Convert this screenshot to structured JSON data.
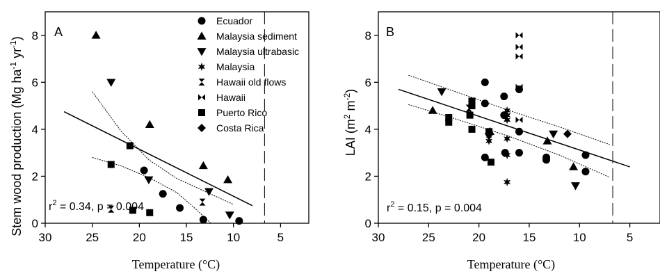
{
  "chart_data": [
    {
      "type": "scatter",
      "panel_label": "A",
      "xlabel": "Temperature (°C)",
      "ylabel_main": "Stem wood production (Mg ha",
      "ylabel_sup1": "-1",
      "ylabel_mid": " yr",
      "ylabel_sup2": "-1",
      "ylabel_end": ")",
      "xlim": [
        30,
        2
      ],
      "ylim": [
        0,
        9
      ],
      "xticks": [
        30,
        25,
        20,
        15,
        10,
        5
      ],
      "yticks": [
        0,
        2,
        4,
        6,
        8
      ],
      "xtick_labels": [
        "30",
        "25",
        "20",
        "15",
        "10",
        "5"
      ],
      "ytick_labels": [
        "0",
        "2",
        "4",
        "6",
        "8"
      ],
      "annotation_pre": "r",
      "annotation_sup": "2",
      "annotation_post": " = 0.34, p = 0.004",
      "dashed_line_x": 6.7,
      "legend_position": "top-right",
      "legend": [
        {
          "label": "Ecuador",
          "marker": "circle"
        },
        {
          "label": "Malaysia sediment",
          "marker": "triangle-up"
        },
        {
          "label": "Malaysia ultrabasic",
          "marker": "triangle-down"
        },
        {
          "label": "Malaysia",
          "marker": "star"
        },
        {
          "label": "Hawaii old flows",
          "marker": "hourglass"
        },
        {
          "label": "Hawaii",
          "marker": "bowtie"
        },
        {
          "label": "Puerto Rico",
          "marker": "square"
        },
        {
          "label": "Costa Rica",
          "marker": "diamond"
        }
      ],
      "series": [
        {
          "name": "Ecuador",
          "marker": "circle",
          "points": [
            [
              19.5,
              2.25
            ],
            [
              17.5,
              1.25
            ],
            [
              15.7,
              0.65
            ],
            [
              13.2,
              0.15
            ],
            [
              9.4,
              0.1
            ]
          ]
        },
        {
          "name": "Malaysia sediment",
          "marker": "triangle-up",
          "points": [
            [
              24.6,
              8.0
            ],
            [
              18.9,
              4.2
            ],
            [
              13.2,
              2.45
            ],
            [
              10.6,
              1.85
            ]
          ]
        },
        {
          "name": "Malaysia ultrabasic",
          "marker": "triangle-down",
          "points": [
            [
              23.0,
              6.0
            ],
            [
              19.0,
              1.85
            ],
            [
              12.6,
              1.35
            ],
            [
              10.4,
              0.35
            ]
          ]
        },
        {
          "name": "Hawaii old flows",
          "marker": "hourglass",
          "points": [
            [
              23.0,
              0.6
            ],
            [
              13.3,
              0.9
            ]
          ]
        },
        {
          "name": "Puerto Rico",
          "marker": "square",
          "points": [
            [
              23.0,
              2.5
            ],
            [
              21.0,
              3.3
            ],
            [
              20.7,
              0.55
            ],
            [
              18.9,
              0.45
            ]
          ]
        }
      ],
      "regression": {
        "x1": 28,
        "y1": 4.75,
        "x2": 8,
        "y2": 0.75
      },
      "ci_upper": [
        [
          25.0,
          5.6
        ],
        [
          22.0,
          3.95
        ],
        [
          19.0,
          2.7
        ],
        [
          16.0,
          1.9
        ],
        [
          13.0,
          1.35
        ],
        [
          10.0,
          0.8
        ]
      ],
      "ci_lower": [
        [
          25.0,
          2.8
        ],
        [
          22.0,
          2.45
        ],
        [
          19.0,
          1.95
        ],
        [
          16.0,
          1.3
        ],
        [
          14.0,
          0.6
        ],
        [
          12.4,
          0.0
        ]
      ]
    },
    {
      "type": "scatter",
      "panel_label": "B",
      "xlabel": "Temperature (°C)",
      "ylabel_main": "LAI (m",
      "ylabel_sup1": "2",
      "ylabel_mid": " m",
      "ylabel_sup2": "-2",
      "ylabel_end": ")",
      "xlim": [
        30,
        2
      ],
      "ylim": [
        0,
        9
      ],
      "xticks": [
        30,
        25,
        20,
        15,
        10,
        5
      ],
      "yticks": [
        0,
        2,
        4,
        6,
        8
      ],
      "xtick_labels": [
        "30",
        "25",
        "20",
        "15",
        "10",
        "5"
      ],
      "ytick_labels": [
        "0",
        "2",
        "4",
        "6",
        "8"
      ],
      "annotation_pre": "r",
      "annotation_sup": "2",
      "annotation_post": " = 0.15, p = 0.004",
      "dashed_line_x": 6.7,
      "series": [
        {
          "name": "Ecuador",
          "marker": "circle",
          "points": [
            [
              19.4,
              6.0
            ],
            [
              19.4,
              5.1
            ],
            [
              17.5,
              5.4
            ],
            [
              17.5,
              4.6
            ],
            [
              16.0,
              5.7
            ],
            [
              16.0,
              3.9
            ],
            [
              16.0,
              3.0
            ],
            [
              17.4,
              3.0
            ],
            [
              19.4,
              2.8
            ],
            [
              13.3,
              2.8
            ],
            [
              13.3,
              2.7
            ],
            [
              9.4,
              2.9
            ],
            [
              9.4,
              2.2
            ]
          ]
        },
        {
          "name": "Malaysia sediment",
          "marker": "triangle-up",
          "points": [
            [
              24.6,
              4.8
            ],
            [
              18.9,
              3.9
            ],
            [
              13.2,
              3.5
            ],
            [
              10.6,
              2.4
            ]
          ]
        },
        {
          "name": "Malaysia ultrabasic",
          "marker": "triangle-down",
          "points": [
            [
              23.7,
              5.6
            ],
            [
              19.0,
              3.7
            ],
            [
              12.6,
              3.8
            ],
            [
              10.4,
              1.6
            ]
          ]
        },
        {
          "name": "Malaysia",
          "marker": "star",
          "points": [
            [
              19.0,
              3.5
            ],
            [
              17.2,
              4.8
            ],
            [
              17.2,
              4.6
            ],
            [
              17.2,
              4.4
            ],
            [
              17.2,
              3.6
            ],
            [
              17.2,
              2.9
            ],
            [
              17.2,
              1.75
            ]
          ]
        },
        {
          "name": "Hawaii old flows",
          "marker": "hourglass",
          "points": [
            [
              23.0,
              4.5
            ],
            [
              21.0,
              4.9
            ],
            [
              19.0,
              3.8
            ],
            [
              17.2,
              4.5
            ]
          ]
        },
        {
          "name": "Hawaii",
          "marker": "bowtie",
          "points": [
            [
              16.0,
              8.0
            ],
            [
              16.0,
              7.5
            ],
            [
              16.0,
              7.1
            ],
            [
              16.0,
              5.8
            ],
            [
              16.0,
              4.4
            ]
          ]
        },
        {
          "name": "Puerto Rico",
          "marker": "square",
          "points": [
            [
              23.0,
              4.5
            ],
            [
              23.0,
              4.3
            ],
            [
              20.7,
              5.2
            ],
            [
              20.7,
              5.0
            ],
            [
              20.9,
              4.6
            ],
            [
              20.7,
              4.0
            ],
            [
              19.0,
              3.9
            ],
            [
              18.8,
              2.6
            ]
          ]
        },
        {
          "name": "Costa Rica",
          "marker": "diamond",
          "points": [
            [
              11.2,
              3.8
            ]
          ]
        }
      ],
      "regression": {
        "x1": 28,
        "y1": 5.7,
        "x2": 5,
        "y2": 2.4
      },
      "ci_upper": [
        [
          27.0,
          6.3
        ],
        [
          22.0,
          5.55
        ],
        [
          17.0,
          4.8
        ],
        [
          12.0,
          4.1
        ],
        [
          7.0,
          3.35
        ]
      ],
      "ci_lower": [
        [
          27.0,
          5.05
        ],
        [
          22.0,
          4.4
        ],
        [
          17.0,
          3.7
        ],
        [
          12.0,
          2.9
        ],
        [
          7.0,
          1.95
        ]
      ]
    }
  ]
}
